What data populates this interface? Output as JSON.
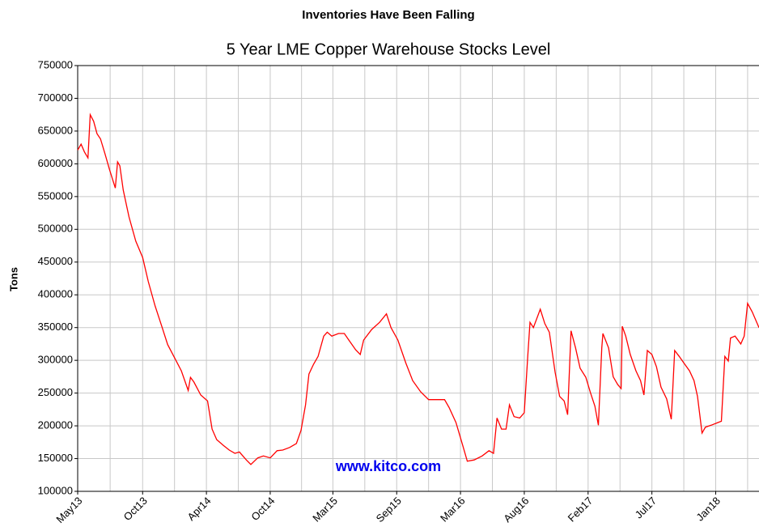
{
  "chart_data": {
    "type": "line",
    "title": "Inventories Have Been Falling",
    "subtitle": "5 Year LME Copper Warehouse Stocks Level",
    "y_label": "Tons",
    "annotation": "www.kitco.com",
    "grid": true,
    "xlim": [
      0,
      59.8
    ],
    "ylim": [
      100000,
      750000
    ],
    "xticks": [
      {
        "value": 0,
        "label": "May13"
      },
      {
        "value": 5.7,
        "label": "Oct13"
      },
      {
        "value": 11.3,
        "label": "Apr14"
      },
      {
        "value": 16.9,
        "label": "Oct14"
      },
      {
        "value": 22.4,
        "label": "Mar15"
      },
      {
        "value": 28.0,
        "label": "Sep15"
      },
      {
        "value": 33.6,
        "label": "Mar16"
      },
      {
        "value": 39.2,
        "label": "Aug16"
      },
      {
        "value": 44.8,
        "label": "Feb17"
      },
      {
        "value": 50.4,
        "label": "Jul17"
      },
      {
        "value": 56.0,
        "label": "Jan18"
      }
    ],
    "yticks": [
      100000,
      150000,
      200000,
      250000,
      300000,
      350000,
      400000,
      450000,
      500000,
      550000,
      600000,
      650000,
      700000,
      750000
    ],
    "series": [
      {
        "color": "#ff0000",
        "x": [
          0,
          0.3,
          0.6,
          0.9,
          1.1,
          1.4,
          1.7,
          2.0,
          2.4,
          2.8,
          3.3,
          3.5,
          3.7,
          4.0,
          4.5,
          5.1,
          5.7,
          6.2,
          6.8,
          7.4,
          7.9,
          8.5,
          9.1,
          9.7,
          9.9,
          10.2,
          10.8,
          11.4,
          11.8,
          12.2,
          12.8,
          13.3,
          13.8,
          14.2,
          14.8,
          15.2,
          15.8,
          16.3,
          16.9,
          17.5,
          18.0,
          18.6,
          19.2,
          19.6,
          20.0,
          20.3,
          20.7,
          21.1,
          21.6,
          21.9,
          22.3,
          22.9,
          23.4,
          23.8,
          24.4,
          24.8,
          25.1,
          25.8,
          26.5,
          27.1,
          27.5,
          28.1,
          28.8,
          29.4,
          30.1,
          30.8,
          31.5,
          32.2,
          32.6,
          33.2,
          33.8,
          34.2,
          34.8,
          35.5,
          36.1,
          36.5,
          36.8,
          37.2,
          37.6,
          37.9,
          38.3,
          38.8,
          39.2,
          39.5,
          39.7,
          40.0,
          40.6,
          41.0,
          41.4,
          41.9,
          42.3,
          42.7,
          43.0,
          43.3,
          43.7,
          44.1,
          44.6,
          45.0,
          45.4,
          45.7,
          46.0,
          46.1,
          46.6,
          47.0,
          47.4,
          47.7,
          47.8,
          48.1,
          48.5,
          49.0,
          49.4,
          49.7,
          50.0,
          50.4,
          50.8,
          51.2,
          51.7,
          52.1,
          52.4,
          52.8,
          53.2,
          53.7,
          54.1,
          54.4,
          54.8,
          55.1,
          55.6,
          56.2,
          56.5,
          56.8,
          57.1,
          57.3,
          57.7,
          58.2,
          58.5,
          58.8,
          59.2,
          59.8
        ],
        "values": [
          621000,
          630000,
          618000,
          609000,
          675000,
          665000,
          646000,
          638000,
          615000,
          591000,
          563000,
          603000,
          597000,
          560000,
          519000,
          482000,
          457000,
          420000,
          383000,
          351000,
          324000,
          304000,
          284000,
          254000,
          274000,
          267000,
          247000,
          238000,
          195000,
          179000,
          170000,
          163000,
          158000,
          160000,
          148000,
          141000,
          151000,
          154000,
          151000,
          162000,
          163000,
          167000,
          173000,
          193000,
          232000,
          279000,
          294000,
          306000,
          337000,
          343000,
          337000,
          341000,
          341000,
          331000,
          316000,
          309000,
          331000,
          347000,
          358000,
          371000,
          350000,
          331000,
          296000,
          269000,
          252000,
          240000,
          240000,
          240000,
          228000,
          205000,
          170000,
          146000,
          148000,
          154000,
          162000,
          158000,
          212000,
          195000,
          195000,
          232000,
          214000,
          212000,
          220000,
          306000,
          358000,
          350000,
          378000,
          356000,
          343000,
          282000,
          245000,
          238000,
          217000,
          345000,
          319000,
          288000,
          274000,
          251000,
          230000,
          201000,
          319000,
          341000,
          319000,
          275000,
          263000,
          257000,
          352000,
          337000,
          309000,
          284000,
          269000,
          247000,
          315000,
          309000,
          290000,
          259000,
          241000,
          210000,
          315000,
          306000,
          296000,
          284000,
          269000,
          245000,
          189000,
          198000,
          201000,
          205000,
          207000,
          306000,
          299000,
          334000,
          337000,
          325000,
          337000,
          387000,
          374000,
          350000
        ]
      }
    ]
  }
}
